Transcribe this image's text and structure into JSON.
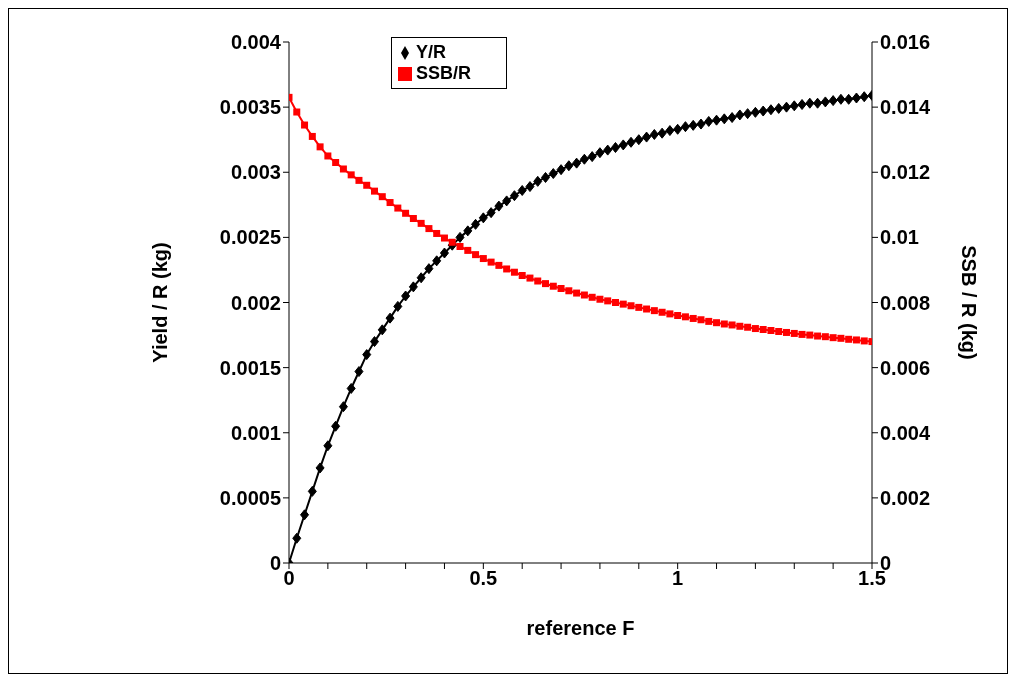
{
  "chart_data": {
    "type": "line",
    "xlabel": "reference F",
    "ylabel": "Yield / R (kg)",
    "y2label": "SSB / R (kg)",
    "x": [
      0,
      0.02,
      0.04,
      0.06,
      0.08,
      0.1,
      0.12,
      0.14,
      0.16,
      0.18,
      0.2,
      0.22,
      0.24,
      0.26,
      0.28,
      0.3,
      0.32,
      0.34,
      0.36,
      0.38,
      0.4,
      0.42,
      0.44,
      0.46,
      0.48,
      0.5,
      0.52,
      0.54,
      0.56,
      0.58,
      0.6,
      0.62,
      0.64,
      0.66,
      0.68,
      0.7,
      0.72,
      0.74,
      0.76,
      0.78,
      0.8,
      0.82,
      0.84,
      0.86,
      0.88,
      0.9,
      0.92,
      0.94,
      0.96,
      0.98,
      1,
      1.02,
      1.04,
      1.06,
      1.08,
      1.1,
      1.12,
      1.14,
      1.16,
      1.18,
      1.2,
      1.22,
      1.24,
      1.26,
      1.28,
      1.3,
      1.32,
      1.34,
      1.36,
      1.38,
      1.4,
      1.42,
      1.44,
      1.46,
      1.48,
      1.5
    ],
    "series": [
      {
        "name": "Y/R",
        "color": "#000000",
        "marker": "diamond",
        "values": [
          0,
          0.00019,
          0.00037,
          0.00055,
          0.00073,
          0.0009,
          0.00105,
          0.0012,
          0.00134,
          0.00147,
          0.0016,
          0.0017,
          0.00179,
          0.00188,
          0.00197,
          0.00205,
          0.00212,
          0.00219,
          0.00226,
          0.00232,
          0.00238,
          0.00244,
          0.0025,
          0.00255,
          0.0026,
          0.00265,
          0.00269,
          0.00274,
          0.00278,
          0.00282,
          0.00286,
          0.00289,
          0.00293,
          0.00296,
          0.00299,
          0.00302,
          0.00305,
          0.00307,
          0.0031,
          0.00312,
          0.00315,
          0.00317,
          0.00319,
          0.00321,
          0.00323,
          0.00325,
          0.00327,
          0.00329,
          0.0033,
          0.00332,
          0.00333,
          0.00335,
          0.00336,
          0.00337,
          0.00339,
          0.0034,
          0.00341,
          0.00342,
          0.00344,
          0.00345,
          0.00346,
          0.00347,
          0.00348,
          0.00349,
          0.0035,
          0.00351,
          0.00352,
          0.00353,
          0.00353,
          0.00354,
          0.00355,
          0.00356,
          0.00356,
          0.00357,
          0.00358,
          0.00359
        ]
      },
      {
        "name": "SSB/R",
        "color": "#ff0000",
        "marker": "square",
        "axis": "y2",
        "values": [
          0.0143,
          0.01385,
          0.01345,
          0.0131,
          0.01278,
          0.0125,
          0.0123,
          0.0121,
          0.01192,
          0.01175,
          0.0116,
          0.01142,
          0.01125,
          0.01107,
          0.0109,
          0.01074,
          0.01058,
          0.01043,
          0.01027,
          0.01012,
          0.00998,
          0.00985,
          0.00972,
          0.0096,
          0.00947,
          0.00935,
          0.00924,
          0.00914,
          0.00903,
          0.00893,
          0.00883,
          0.00875,
          0.00866,
          0.00858,
          0.0085,
          0.00843,
          0.00836,
          0.00829,
          0.00823,
          0.00816,
          0.0081,
          0.00805,
          0.008,
          0.00795,
          0.0079,
          0.00785,
          0.0078,
          0.00775,
          0.0077,
          0.00765,
          0.0076,
          0.00756,
          0.00751,
          0.00747,
          0.00742,
          0.00738,
          0.00734,
          0.00731,
          0.00727,
          0.00724,
          0.0072,
          0.00717,
          0.00714,
          0.00711,
          0.00708,
          0.00705,
          0.00702,
          0.007,
          0.00697,
          0.00695,
          0.00692,
          0.0069,
          0.00687,
          0.00685,
          0.00682,
          0.0068
        ]
      }
    ],
    "xlim": [
      0,
      1.5
    ],
    "xticks": [
      0,
      {
        "value": 0.1,
        "label": null
      },
      {
        "value": 0.2,
        "label": null
      },
      {
        "value": 0.3,
        "label": null
      },
      {
        "value": 0.4,
        "label": null
      },
      0.5,
      {
        "value": 0.6,
        "label": null
      },
      {
        "value": 0.7,
        "label": null
      },
      {
        "value": 0.8,
        "label": null
      },
      {
        "value": 0.9,
        "label": null
      },
      1,
      {
        "value": 1.1,
        "label": null
      },
      {
        "value": 1.2,
        "label": null
      },
      {
        "value": 1.3,
        "label": null
      },
      {
        "value": 1.4,
        "label": null
      },
      1.5
    ],
    "ylim": [
      0,
      0.004
    ],
    "yticks": [
      0,
      0.0005,
      0.001,
      0.0015,
      0.002,
      0.0025,
      0.003,
      0.0035,
      0.004
    ],
    "y2lim": [
      0,
      0.016
    ],
    "y2ticks": [
      0,
      0.002,
      0.004,
      0.006,
      0.008,
      0.01,
      0.012,
      0.014,
      0.016
    ],
    "legend": "top",
    "grid": false,
    "line_style": "solid"
  }
}
